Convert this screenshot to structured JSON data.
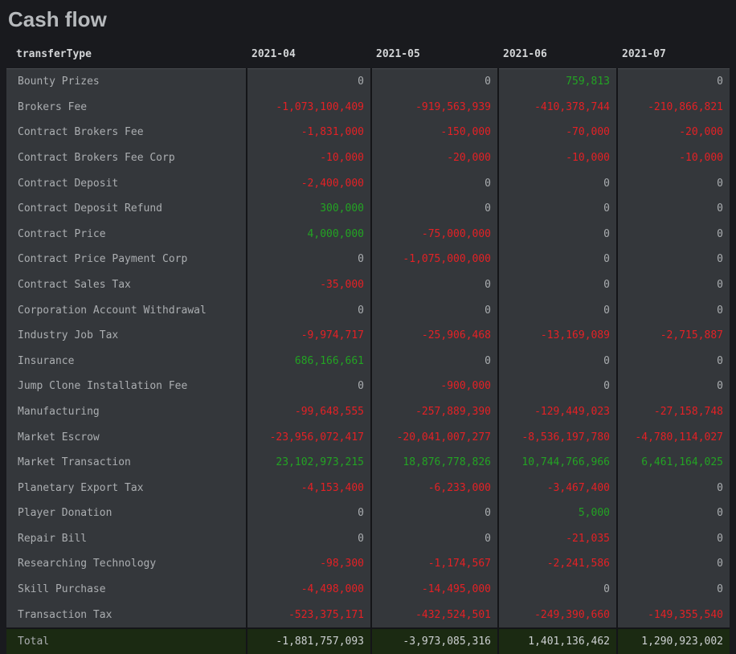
{
  "title": "Cash flow",
  "colors": {
    "page_bg": "#191a1e",
    "row_bg": "#34373b",
    "border": "#141518",
    "title_text": "#b6b9bc",
    "header_text": "#d3d5d7",
    "label_text": "#abaeb1",
    "negative": "#e32125",
    "positive": "#23a323",
    "zero": "#a9acaf",
    "total_bg": "#1b2a12",
    "total_text": "#cdd0d2"
  },
  "chart_data": {
    "type": "table",
    "title": "Cash flow",
    "columns": [
      "transferType",
      "2021-04",
      "2021-05",
      "2021-06",
      "2021-07"
    ],
    "value_color_rule": "negative=red, positive=green, zero=gray; total row uses plain light text on dark green background",
    "rows": [
      {
        "label": "Bounty Prizes",
        "values": [
          0,
          0,
          759813,
          0
        ]
      },
      {
        "label": "Brokers Fee",
        "values": [
          -1073100409,
          -919563939,
          -410378744,
          -210866821
        ]
      },
      {
        "label": "Contract Brokers Fee",
        "values": [
          -1831000,
          -150000,
          -70000,
          -20000
        ]
      },
      {
        "label": "Contract Brokers Fee Corp",
        "values": [
          -10000,
          -20000,
          -10000,
          -10000
        ]
      },
      {
        "label": "Contract Deposit",
        "values": [
          -2400000,
          0,
          0,
          0
        ]
      },
      {
        "label": "Contract Deposit Refund",
        "values": [
          300000,
          0,
          0,
          0
        ]
      },
      {
        "label": "Contract Price",
        "values": [
          4000000,
          -75000000,
          0,
          0
        ]
      },
      {
        "label": "Contract Price Payment Corp",
        "values": [
          0,
          -1075000000,
          0,
          0
        ]
      },
      {
        "label": "Contract Sales Tax",
        "values": [
          -35000,
          0,
          0,
          0
        ]
      },
      {
        "label": "Corporation Account Withdrawal",
        "values": [
          0,
          0,
          0,
          0
        ]
      },
      {
        "label": "Industry Job Tax",
        "values": [
          -9974717,
          -25906468,
          -13169089,
          -2715887
        ]
      },
      {
        "label": "Insurance",
        "values": [
          686166661,
          0,
          0,
          0
        ]
      },
      {
        "label": "Jump Clone Installation Fee",
        "values": [
          0,
          -900000,
          0,
          0
        ]
      },
      {
        "label": "Manufacturing",
        "values": [
          -99648555,
          -257889390,
          -129449023,
          -27158748
        ]
      },
      {
        "label": "Market Escrow",
        "values": [
          -23956072417,
          -20041007277,
          -8536197780,
          -4780114027
        ]
      },
      {
        "label": "Market Transaction",
        "values": [
          23102973215,
          18876778826,
          10744766966,
          6461164025
        ]
      },
      {
        "label": "Planetary Export Tax",
        "values": [
          -4153400,
          -6233000,
          -3467400,
          0
        ]
      },
      {
        "label": "Player Donation",
        "values": [
          0,
          0,
          5000,
          0
        ]
      },
      {
        "label": "Repair Bill",
        "values": [
          0,
          0,
          -21035,
          0
        ]
      },
      {
        "label": "Researching Technology",
        "values": [
          -98300,
          -1174567,
          -2241586,
          0
        ]
      },
      {
        "label": "Skill Purchase",
        "values": [
          -4498000,
          -14495000,
          0,
          0
        ]
      },
      {
        "label": "Transaction Tax",
        "values": [
          -523375171,
          -432524501,
          -249390660,
          -149355540
        ]
      }
    ],
    "total": {
      "label": "Total",
      "values": [
        -1881757093,
        -3973085316,
        1401136462,
        1290923002
      ]
    }
  }
}
